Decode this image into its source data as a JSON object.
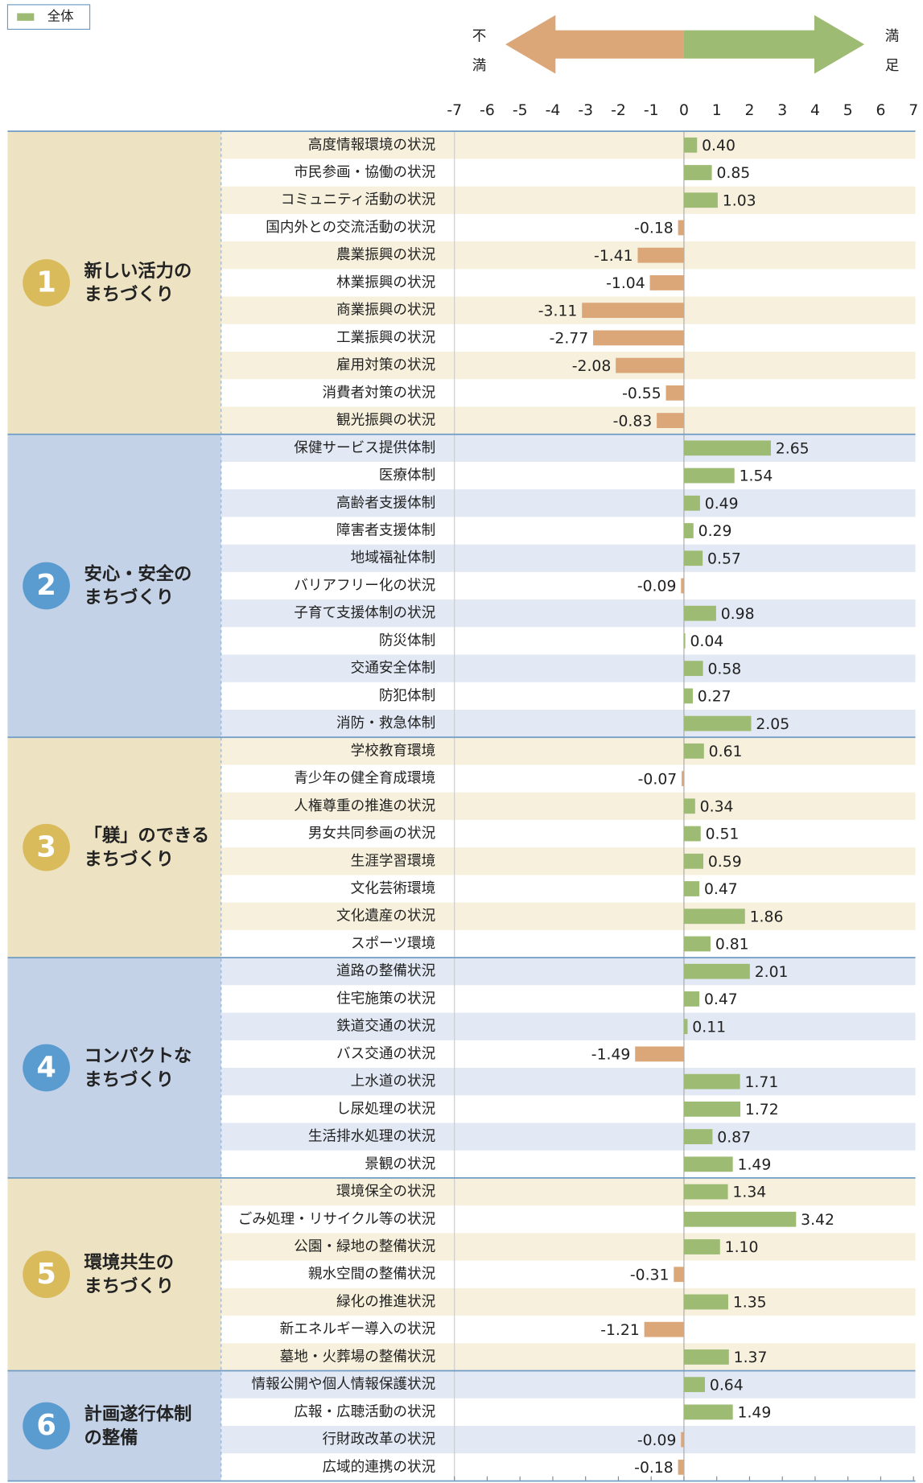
{
  "chart_data": {
    "type": "diverging-bar",
    "legend": {
      "name": "全体",
      "color": "#9dbb73"
    },
    "positive_color": "#9dbb73",
    "negative_color": "#dba678",
    "arrow_left_label": "不満",
    "arrow_right_label": "満足",
    "xlim": [
      -7,
      7
    ],
    "xticks": [
      -7,
      -6,
      -5,
      -4,
      -3,
      -2,
      -1,
      0,
      1,
      2,
      3,
      4,
      5,
      6,
      7
    ],
    "groups": [
      {
        "number": "1",
        "name_lines": [
          "新しい活力の",
          "まちづくり"
        ],
        "panel_color": "#ede3c3",
        "stripe_color": "#f6f0dc",
        "badge_color": "#d9bb5c",
        "categories": [
          "高度情報環境の状況",
          "市民参画・協働の状況",
          "コミュニティ活動の状況",
          "国内外との交流活動の状況",
          "農業振興の状況",
          "林業振興の状況",
          "商業振興の状況",
          "工業振興の状況",
          "雇用対策の状況",
          "消費者対策の状況",
          "観光振興の状況"
        ],
        "values": [
          0.4,
          0.85,
          1.03,
          -0.18,
          -1.41,
          -1.04,
          -3.11,
          -2.77,
          -2.08,
          -0.55,
          -0.83
        ],
        "value_labels": [
          "0.40",
          "0.85",
          "1.03",
          "-0.18",
          "-1.41",
          "-1.04",
          "-3.11",
          "-2.77",
          "-2.08",
          "-0.55",
          "-0.83"
        ]
      },
      {
        "number": "2",
        "name_lines": [
          "安心・安全の",
          "まちづくり"
        ],
        "panel_color": "#c4d2e8",
        "stripe_color": "#e2e9f4",
        "badge_color": "#5a9bd0",
        "categories": [
          "保健サービス提供体制",
          "医療体制",
          "高齢者支援体制",
          "障害者支援体制",
          "地域福祉体制",
          "バリアフリー化の状況",
          "子育て支援体制の状況",
          "防災体制",
          "交通安全体制",
          "防犯体制",
          "消防・救急体制"
        ],
        "values": [
          2.65,
          1.54,
          0.49,
          0.29,
          0.57,
          -0.09,
          0.98,
          0.04,
          0.58,
          0.27,
          2.05
        ],
        "value_labels": [
          "2.65",
          "1.54",
          "0.49",
          "0.29",
          "0.57",
          "-0.09",
          "0.98",
          "0.04",
          "0.58",
          "0.27",
          "2.05"
        ]
      },
      {
        "number": "3",
        "name_lines": [
          "「躾」のできる",
          "まちづくり"
        ],
        "panel_color": "#ede3c3",
        "stripe_color": "#f6f0dc",
        "badge_color": "#d9bb5c",
        "categories": [
          "学校教育環境",
          "青少年の健全育成環境",
          "人権尊重の推進の状況",
          "男女共同参画の状況",
          "生涯学習環境",
          "文化芸術環境",
          "文化遺産の状況",
          "スポーツ環境"
        ],
        "values": [
          0.61,
          -0.07,
          0.34,
          0.51,
          0.59,
          0.47,
          1.86,
          0.81
        ],
        "value_labels": [
          "0.61",
          "-0.07",
          "0.34",
          "0.51",
          "0.59",
          "0.47",
          "1.86",
          "0.81"
        ]
      },
      {
        "number": "4",
        "name_lines": [
          "コンパクトな",
          "まちづくり"
        ],
        "panel_color": "#c4d2e8",
        "stripe_color": "#e2e9f4",
        "badge_color": "#5a9bd0",
        "categories": [
          "道路の整備状況",
          "住宅施策の状況",
          "鉄道交通の状況",
          "バス交通の状況",
          "上水道の状況",
          "し尿処理の状況",
          "生活排水処理の状況",
          "景観の状況"
        ],
        "values": [
          2.01,
          0.47,
          0.11,
          -1.49,
          1.71,
          1.72,
          0.87,
          1.49
        ],
        "value_labels": [
          "2.01",
          "0.47",
          "0.11",
          "-1.49",
          "1.71",
          "1.72",
          "0.87",
          "1.49"
        ]
      },
      {
        "number": "5",
        "name_lines": [
          "環境共生の",
          "まちづくり"
        ],
        "panel_color": "#ede3c3",
        "stripe_color": "#f6f0dc",
        "badge_color": "#d9bb5c",
        "categories": [
          "環境保全の状況",
          "ごみ処理・リサイクル等の状況",
          "公園・緑地の整備状況",
          "親水空間の整備状況",
          "緑化の推進状況",
          "新エネルギー導入の状況",
          "墓地・火葬場の整備状況"
        ],
        "values": [
          1.34,
          3.42,
          1.1,
          -0.31,
          1.35,
          -1.21,
          1.37
        ],
        "value_labels": [
          "1.34",
          "3.42",
          "1.10",
          "-0.31",
          "1.35",
          "-1.21",
          "1.37"
        ]
      },
      {
        "number": "6",
        "name_lines": [
          "計画遂行体制",
          "の整備"
        ],
        "panel_color": "#c4d2e8",
        "stripe_color": "#e2e9f4",
        "badge_color": "#5a9bd0",
        "categories": [
          "情報公開や個人情報保護状況",
          "広報・広聴活動の状況",
          "行財政改革の状況",
          "広域的連携の状況"
        ],
        "values": [
          0.64,
          1.49,
          -0.09,
          -0.18
        ],
        "value_labels": [
          "0.64",
          "1.49",
          "-0.09",
          "-0.18"
        ]
      }
    ]
  }
}
